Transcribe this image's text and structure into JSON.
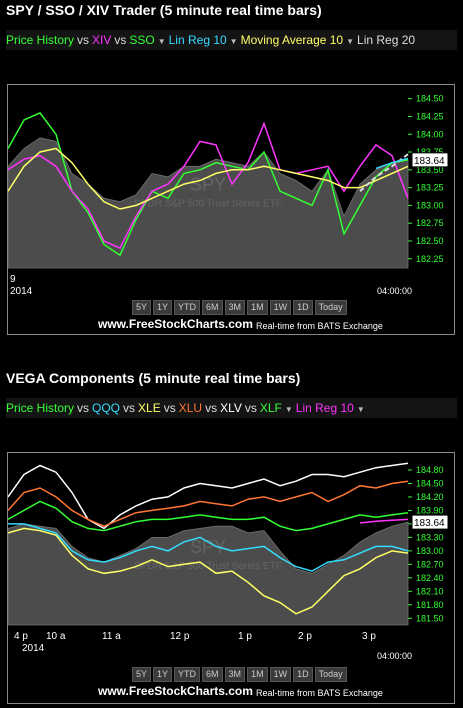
{
  "panels": [
    {
      "title": "SPY / SSO / XIV Trader (5 minute real time bars)",
      "legend": [
        {
          "text": "Price History",
          "color": "#33ff33"
        },
        {
          "text": "vs",
          "color": "#dddddd"
        },
        {
          "text": "XIV",
          "color": "#ff33ff"
        },
        {
          "text": "vs",
          "color": "#dddddd"
        },
        {
          "text": "SSO",
          "color": "#33ff33"
        },
        {
          "text": "▼",
          "color": "#bbbbbb",
          "arrow": true
        },
        {
          "text": "Lin Reg 10",
          "color": "#33ddff"
        },
        {
          "text": "▼",
          "color": "#bbbbbb",
          "arrow": true
        },
        {
          "text": "Moving Average 10",
          "color": "#ffff66"
        },
        {
          "text": "▼",
          "color": "#bbbbbb",
          "arrow": true
        },
        {
          "text": "Lin Reg 20",
          "color": "#dddddd"
        }
      ],
      "watermark": "SPY",
      "watermark_sub": "SPDR S&P 500 Trust Series ETF",
      "last_price": "183.64",
      "x_labels": [
        {
          "text": "9",
          "x": 0
        },
        {
          "text": "2014",
          "x": 0
        }
      ],
      "time_box": "04:00:00",
      "buttons": [
        "5Y",
        "1Y",
        "YTD",
        "6M",
        "3M",
        "1M",
        "1W",
        "1D",
        "Today"
      ],
      "credit": "www.FreeStockCharts.com",
      "credit_sub": "Real-time from BATS Exchange",
      "chart_data": {
        "type": "line",
        "y_ticks": [
          "184.50",
          "184.25",
          "184.00",
          "183.75",
          "183.50",
          "183.25",
          "183.00",
          "182.75",
          "182.50",
          "182.25"
        ],
        "ylim": [
          182.12,
          184.58
        ],
        "x": [
          0,
          4,
          8,
          12,
          16,
          20,
          24,
          28,
          32,
          36,
          40,
          44,
          48,
          52,
          56,
          60,
          64,
          68,
          72,
          76,
          80,
          84,
          88,
          92,
          96,
          100
        ],
        "series": [
          {
            "name": "Price History",
            "kind": "area",
            "color": "#666666",
            "values": [
              183.55,
              183.8,
              183.95,
              183.9,
              183.45,
              183.3,
              183.1,
              183.05,
              183.15,
              183.45,
              183.4,
              183.55,
              183.55,
              183.65,
              183.6,
              183.55,
              183.75,
              183.45,
              183.35,
              183.2,
              183.5,
              182.85,
              183.3,
              183.5,
              183.6,
              183.64
            ]
          },
          {
            "name": "SSO",
            "kind": "line",
            "color": "#33ff33",
            "values": [
              183.8,
              184.2,
              184.3,
              184.0,
              183.2,
              182.9,
              182.45,
              182.3,
              182.8,
              183.2,
              183.1,
              183.45,
              183.5,
              183.6,
              183.55,
              183.5,
              183.75,
              183.2,
              183.1,
              183.0,
              183.5,
              182.6,
              183.0,
              183.4,
              183.6,
              183.64
            ]
          },
          {
            "name": "XIV",
            "kind": "line",
            "color": "#ff33ff",
            "values": [
              183.5,
              183.65,
              183.7,
              183.55,
              183.2,
              182.95,
              182.5,
              182.4,
              182.85,
              183.2,
              183.3,
              183.55,
              183.9,
              183.85,
              183.3,
              183.6,
              184.15,
              183.5,
              183.45,
              183.5,
              183.55,
              183.2,
              183.55,
              183.85,
              183.7,
              183.1
            ]
          },
          {
            "name": "Moving Average 10",
            "kind": "line",
            "color": "#ffff66",
            "values": [
              183.2,
              183.55,
              183.75,
              183.8,
              183.6,
              183.3,
              183.05,
              182.95,
              183.0,
              183.1,
              183.2,
              183.3,
              183.35,
              183.45,
              183.5,
              183.5,
              183.55,
              183.5,
              183.45,
              183.4,
              183.35,
              183.25,
              183.25,
              183.35,
              183.45,
              183.55
            ]
          },
          {
            "name": "Lin Reg 20",
            "kind": "line",
            "color": "#dddddd",
            "dash": true,
            "values": [
              null,
              null,
              null,
              null,
              null,
              null,
              null,
              null,
              null,
              null,
              null,
              null,
              null,
              null,
              null,
              null,
              null,
              null,
              null,
              null,
              null,
              null,
              183.2,
              183.4,
              183.55,
              183.72
            ]
          },
          {
            "name": "Lin Reg 10",
            "kind": "line",
            "color": "#33ddff",
            "values": [
              null,
              null,
              null,
              null,
              null,
              null,
              null,
              null,
              null,
              null,
              null,
              null,
              null,
              null,
              null,
              null,
              null,
              null,
              null,
              null,
              null,
              null,
              null,
              183.52,
              183.6,
              183.66
            ]
          }
        ]
      }
    },
    {
      "title": "VEGA Components (5 minute real time bars)",
      "legend": [
        {
          "text": "Price History",
          "color": "#33ff33"
        },
        {
          "text": "vs",
          "color": "#dddddd"
        },
        {
          "text": "QQQ",
          "color": "#33ddff"
        },
        {
          "text": "vs",
          "color": "#dddddd"
        },
        {
          "text": "XLE",
          "color": "#ffff66"
        },
        {
          "text": "vs",
          "color": "#dddddd"
        },
        {
          "text": "XLU",
          "color": "#ff7733"
        },
        {
          "text": "vs",
          "color": "#dddddd"
        },
        {
          "text": "XLV",
          "color": "#ffffff"
        },
        {
          "text": "vs",
          "color": "#dddddd"
        },
        {
          "text": "XLF",
          "color": "#33ff33"
        },
        {
          "text": "▼",
          "color": "#bbbbbb",
          "arrow": true
        },
        {
          "text": "Lin Reg 10",
          "color": "#ff33ff"
        },
        {
          "text": "▼",
          "color": "#bbbbbb",
          "arrow": true
        }
      ],
      "watermark": "SPY",
      "watermark_sub": "SPDR S&P 500 Trust Series ETF",
      "last_price": "183.64",
      "x_labels": [
        {
          "text": "4 p",
          "x": 1
        },
        {
          "text": "10 a",
          "x": 9
        },
        {
          "text": "11 a",
          "x": 23
        },
        {
          "text": "12 p",
          "x": 40
        },
        {
          "text": "1 p",
          "x": 57
        },
        {
          "text": "2 p",
          "x": 72
        },
        {
          "text": "3 p",
          "x": 88
        },
        {
          "text": "2014",
          "x": 3
        }
      ],
      "time_box": "04:00:00",
      "buttons": [
        "5Y",
        "1Y",
        "YTD",
        "6M",
        "3M",
        "1M",
        "1W",
        "1D",
        "Today"
      ],
      "credit": "www.FreeStockCharts.com",
      "credit_sub": "Real-time from BATS Exchange",
      "chart_data": {
        "type": "line",
        "y_ticks": [
          "184.80",
          "184.50",
          "184.20",
          "183.90",
          "183.60",
          "183.30",
          "183.00",
          "182.70",
          "182.40",
          "182.10",
          "181.80",
          "181.50"
        ],
        "ylim": [
          181.35,
          185.0
        ],
        "x": [
          0,
          4,
          8,
          12,
          16,
          20,
          24,
          28,
          32,
          36,
          40,
          44,
          48,
          52,
          56,
          60,
          64,
          68,
          72,
          76,
          80,
          84,
          88,
          92,
          96,
          100
        ],
        "series": [
          {
            "name": "Price History",
            "kind": "area",
            "color": "#666666",
            "values": [
              183.5,
              183.6,
              183.55,
              183.5,
              183.1,
              182.85,
              182.75,
              182.9,
              183.05,
              183.3,
              183.3,
              183.45,
              183.5,
              183.55,
              183.55,
              183.4,
              183.45,
              183.0,
              182.6,
              182.5,
              182.7,
              182.9,
              183.2,
              183.4,
              183.55,
              183.64
            ]
          },
          {
            "name": "XLV",
            "kind": "line",
            "color": "#ffffff",
            "values": [
              184.2,
              184.7,
              184.9,
              184.75,
              184.3,
              183.7,
              183.5,
              183.8,
              184.0,
              184.15,
              184.2,
              184.4,
              184.5,
              184.45,
              184.4,
              184.5,
              184.6,
              184.45,
              184.55,
              184.7,
              184.7,
              184.65,
              184.75,
              184.85,
              184.9,
              184.95
            ]
          },
          {
            "name": "XLU",
            "kind": "line",
            "color": "#ff7733",
            "values": [
              183.9,
              184.3,
              184.4,
              184.2,
              183.9,
              183.7,
              183.55,
              183.7,
              183.85,
              183.9,
              183.95,
              184.0,
              184.1,
              184.05,
              184.0,
              184.15,
              184.2,
              184.1,
              184.2,
              184.3,
              184.1,
              184.25,
              184.45,
              184.4,
              184.5,
              184.55
            ]
          },
          {
            "name": "XLF",
            "kind": "line",
            "color": "#33ff33",
            "values": [
              183.7,
              183.9,
              184.1,
              183.95,
              183.65,
              183.5,
              183.45,
              183.55,
              183.65,
              183.7,
              183.7,
              183.75,
              183.8,
              183.75,
              183.7,
              183.7,
              183.75,
              183.55,
              183.45,
              183.5,
              183.6,
              183.7,
              183.8,
              183.75,
              183.8,
              183.85
            ]
          },
          {
            "name": "QQQ",
            "kind": "line",
            "color": "#33ddff",
            "values": [
              183.6,
              183.6,
              183.5,
              183.4,
              183.0,
              182.8,
              182.75,
              182.85,
              183.0,
              183.1,
              183.0,
              183.2,
              183.3,
              183.1,
              183.0,
              183.05,
              183.1,
              182.85,
              182.65,
              182.55,
              182.75,
              182.8,
              182.95,
              183.1,
              183.1,
              183.0
            ]
          },
          {
            "name": "XLE",
            "kind": "line",
            "color": "#ffff66",
            "values": [
              183.4,
              183.5,
              183.45,
              183.35,
              182.9,
              182.6,
              182.5,
              182.55,
              182.65,
              182.8,
              182.65,
              182.7,
              182.75,
              182.5,
              182.55,
              182.3,
              182.0,
              181.85,
              181.6,
              181.75,
              182.1,
              182.45,
              182.6,
              182.85,
              183.0,
              182.95
            ]
          },
          {
            "name": "Lin Reg 10",
            "kind": "line",
            "color": "#ff33ff",
            "values": [
              null,
              null,
              null,
              null,
              null,
              null,
              null,
              null,
              null,
              null,
              null,
              null,
              null,
              null,
              null,
              null,
              null,
              null,
              null,
              null,
              null,
              null,
              183.62,
              183.66,
              183.68,
              183.7
            ]
          }
        ]
      }
    }
  ]
}
